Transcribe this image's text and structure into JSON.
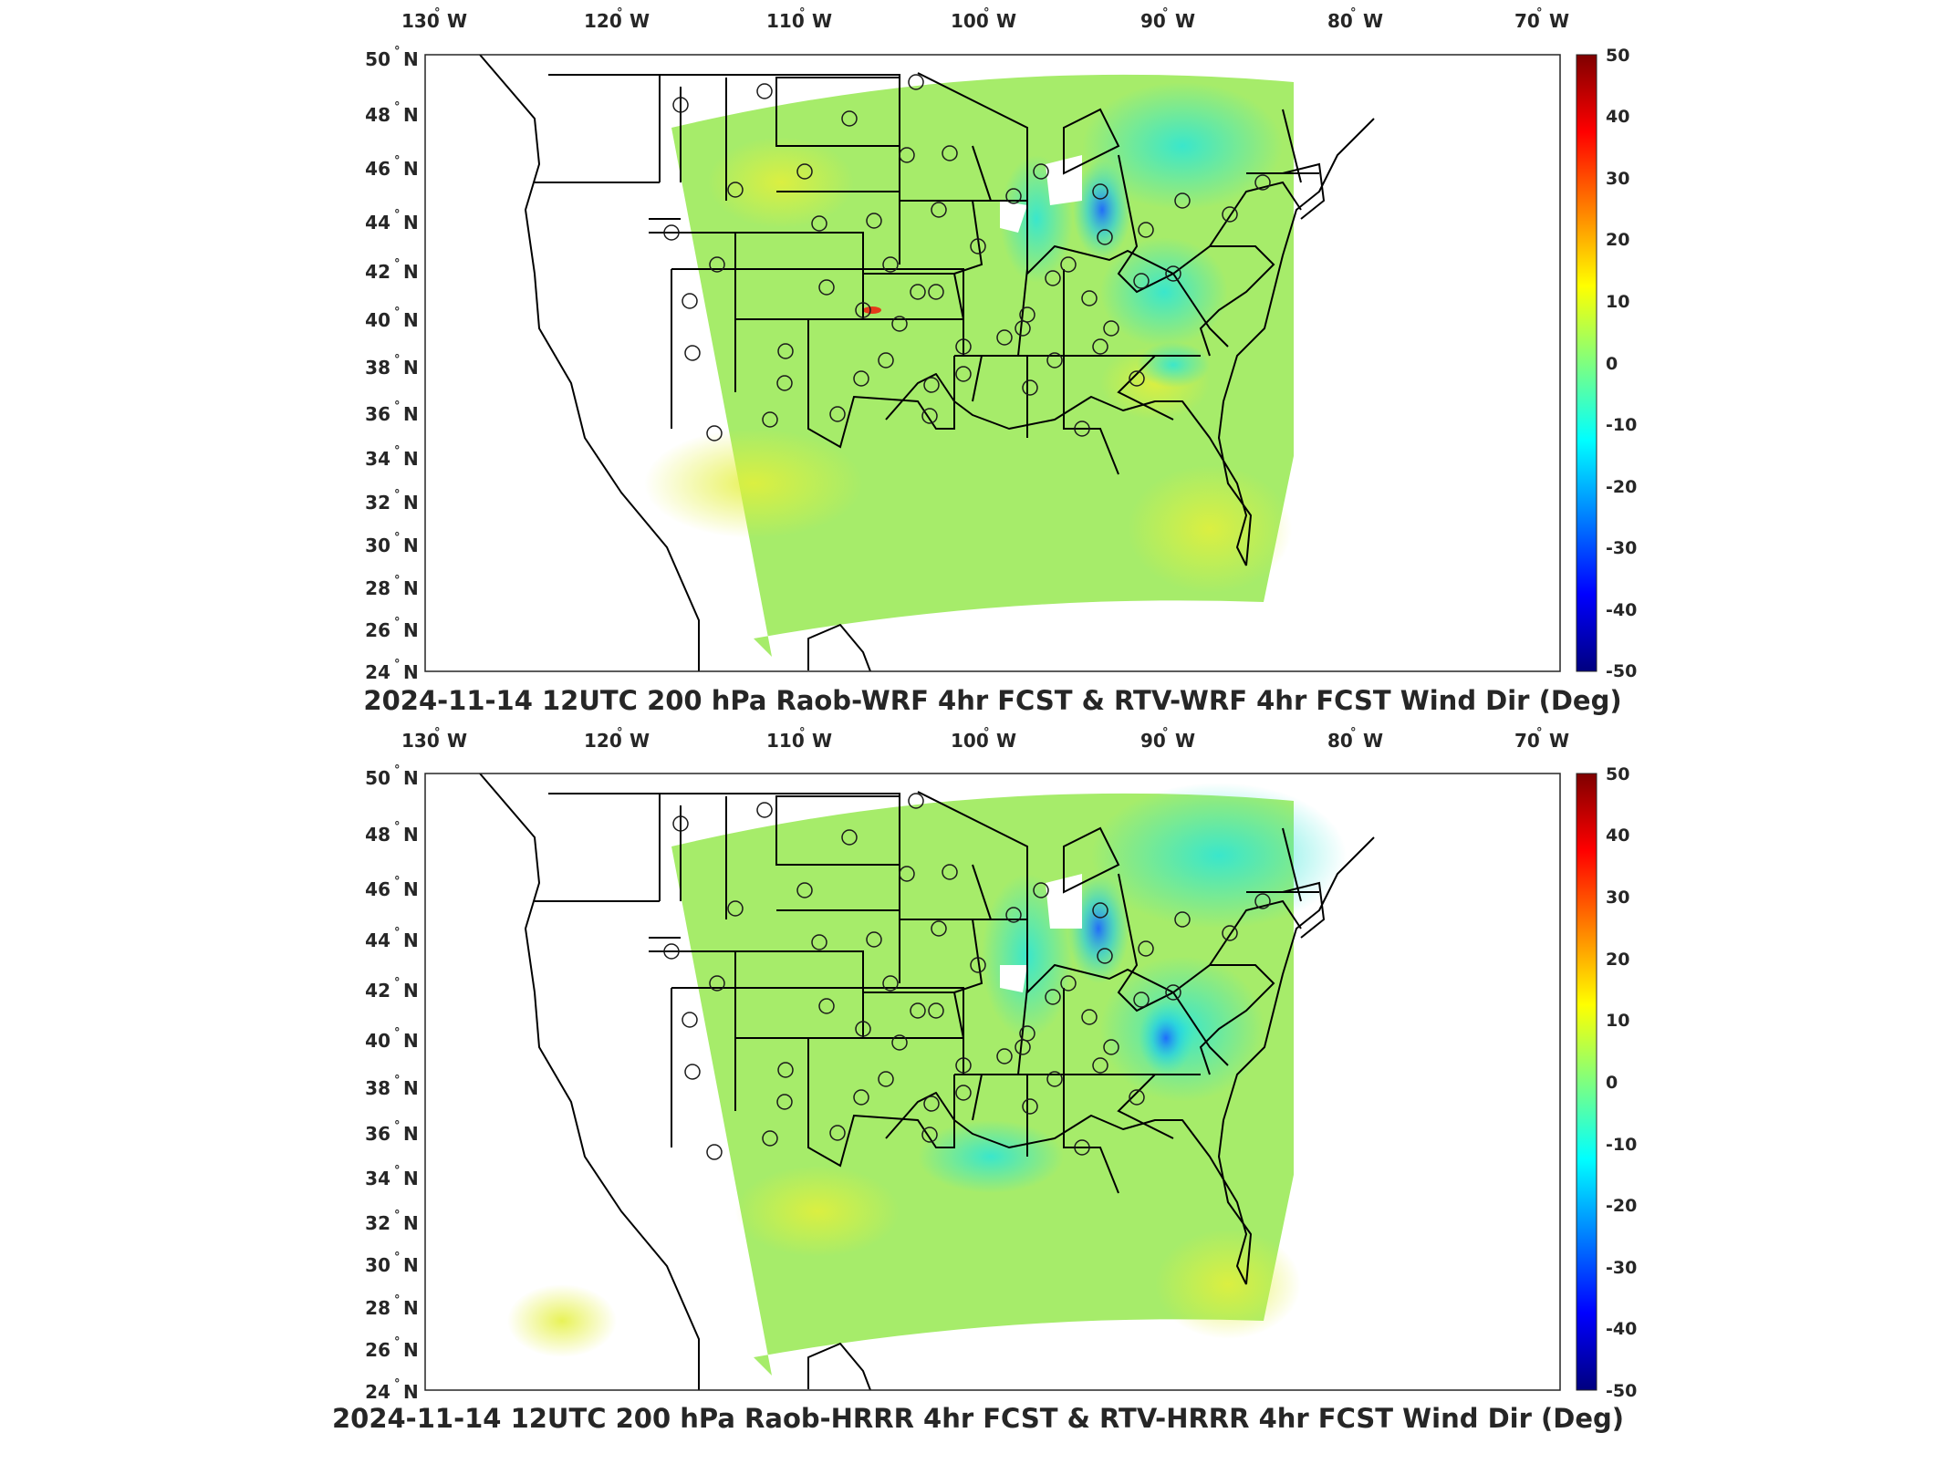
{
  "colors": {
    "field_base": "#a6ec6a",
    "field_cyan": "#2ee6d6",
    "field_blue": "#1c66ff",
    "field_yellow": "#e4f03a",
    "colormap": [
      "#00007f",
      "#0000ff",
      "#007fff",
      "#00ffff",
      "#7fff7f",
      "#ffff00",
      "#ff7f00",
      "#ff0000",
      "#7f0000"
    ]
  },
  "map_axes": {
    "lon_ticks": [
      "130",
      "120",
      "110",
      "100",
      "90",
      "80",
      "70"
    ],
    "lon_hemisphere": "W",
    "lat_ticks": [
      "50",
      "48",
      "46",
      "44",
      "42",
      "40",
      "38",
      "36",
      "34",
      "32",
      "30",
      "28",
      "26",
      "24"
    ],
    "lat_hemisphere": "N",
    "degree_symbol": "°"
  },
  "colorbar": {
    "ticks": [
      "50",
      "40",
      "30",
      "20",
      "10",
      "0",
      "-10",
      "-20",
      "-30",
      "-40",
      "-50"
    ]
  },
  "panels": [
    {
      "title": "2024-11-14 12UTC 200 hPa Raob-WRF 4hr FCST & RTV-WRF 4hr FCST Wind Dir (Deg)"
    },
    {
      "title": "2024-11-14 12UTC 200 hPa Raob-HRRR 4hr FCST & RTV-HRRR 4hr FCST Wind Dir (Deg)"
    }
  ]
}
